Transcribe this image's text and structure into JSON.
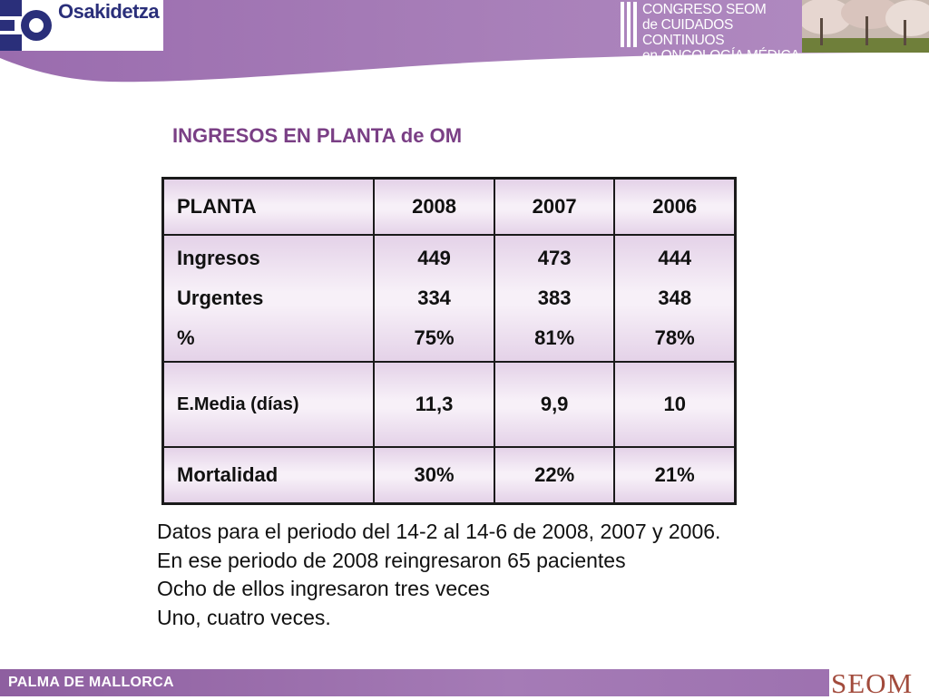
{
  "header": {
    "logo_text": "Osakidetza",
    "congreso_lines": [
      "CONGRESO SEOM",
      "de CUIDADOS CONTINUOS",
      "en ONCOLOGÍA MÉDICA"
    ]
  },
  "title": "INGRESOS EN PLANTA de OM",
  "table": {
    "headers": [
      "PLANTA",
      "2008",
      "2007",
      "2006"
    ],
    "block_labels": [
      "Ingresos",
      "Urgentes",
      "%"
    ],
    "block_values": [
      [
        "449",
        "334",
        "75%"
      ],
      [
        "473",
        "383",
        "81%"
      ],
      [
        "444",
        "348",
        "78%"
      ]
    ],
    "media": {
      "label": "E.Media (días)",
      "values": [
        "11,3",
        "9,9",
        "10"
      ]
    },
    "mortalidad": {
      "label": "Mortalidad",
      "values": [
        "30%",
        "22%",
        "21%"
      ]
    }
  },
  "notes": [
    "Datos para el periodo del 14-2 al 14-6 de 2008, 2007 y 2006.",
    "En ese periodo de 2008 reingresaron 65 pacientes",
    "Ocho de ellos ingresaron tres veces",
    "Uno, cuatro veces."
  ],
  "footer": {
    "left_label": "PALMA DE MALLORCA",
    "right_logo": "SEOM"
  },
  "colors": {
    "band": "#a57bb6",
    "title": "#7a3f85",
    "seom": "#a24b3c"
  }
}
